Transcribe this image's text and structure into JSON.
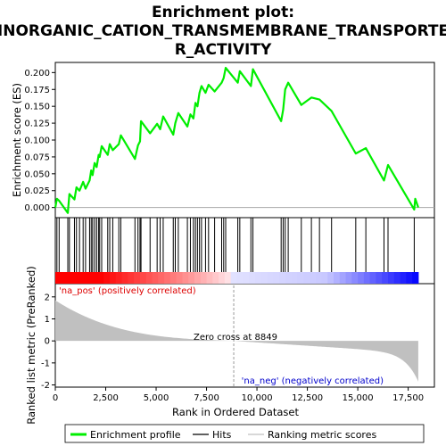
{
  "chart_data": {
    "type": "line",
    "title_line1": "Enrichment plot:",
    "title_line2": "INORGANIC_CATION_TRANSMEMBRANE_TRANSPORTE",
    "title_line3": "R_ACTIVITY",
    "xlabel": "Rank in Ordered Dataset",
    "ylabel_top": "Enrichment score (ES)",
    "ylabel_bottom": "Ranked list metric (PreRanked)",
    "xlim": [
      0,
      18800
    ],
    "es_ylim": [
      -0.015,
      0.215
    ],
    "metric_ylim": [
      -2.1,
      2.6
    ],
    "x_ticks": [
      0,
      2500,
      5000,
      7500,
      10000,
      12500,
      15000,
      17500
    ],
    "x_tick_labels": [
      "0",
      "2,500",
      "5,000",
      "7,500",
      "10,000",
      "12,500",
      "15,000",
      "17,500"
    ],
    "es_ticks": [
      0.0,
      0.025,
      0.05,
      0.075,
      0.1,
      0.125,
      0.15,
      0.175,
      0.2
    ],
    "es_tick_labels": [
      "0.000",
      "0.025",
      "0.050",
      "0.075",
      "0.100",
      "0.125",
      "0.150",
      "0.175",
      "0.200"
    ],
    "metric_ticks": [
      -2,
      -1,
      0,
      1,
      2
    ],
    "metric_tick_labels": [
      "-2",
      "-1",
      "0",
      "1",
      "2"
    ],
    "zero_cross_rank": 8849,
    "zero_cross_label": "Zero cross at 8849",
    "pos_label": "'na_pos' (positively correlated)",
    "neg_label": "'na_neg' (negatively correlated)",
    "n_genes": 18000,
    "hits": [
      80,
      190,
      620,
      700,
      950,
      1050,
      1200,
      1380,
      1500,
      1700,
      1780,
      1850,
      1950,
      2050,
      2150,
      2200,
      2300,
      2600,
      2700,
      2850,
      3150,
      3250,
      3950,
      4100,
      4200,
      4250,
      4700,
      5050,
      5200,
      5350,
      5850,
      5950,
      6100,
      6550,
      6700,
      6850,
      6950,
      7050,
      7150,
      7250,
      7450,
      7600,
      7900,
      8250,
      8350,
      8450,
      9050,
      9150,
      9700,
      9800,
      11200,
      11300,
      11400,
      11550,
      12200,
      12700,
      13100,
      13700,
      14900,
      15400,
      16300,
      16500,
      17800
    ],
    "es_points": [
      [
        0,
        0.0
      ],
      [
        80,
        0.013
      ],
      [
        190,
        0.01
      ],
      [
        620,
        -0.008
      ],
      [
        700,
        0.02
      ],
      [
        950,
        0.012
      ],
      [
        1050,
        0.03
      ],
      [
        1200,
        0.025
      ],
      [
        1380,
        0.038
      ],
      [
        1500,
        0.028
      ],
      [
        1700,
        0.04
      ],
      [
        1780,
        0.055
      ],
      [
        1850,
        0.048
      ],
      [
        1950,
        0.066
      ],
      [
        2050,
        0.06
      ],
      [
        2150,
        0.078
      ],
      [
        2200,
        0.075
      ],
      [
        2300,
        0.091
      ],
      [
        2600,
        0.078
      ],
      [
        2700,
        0.094
      ],
      [
        2850,
        0.085
      ],
      [
        3150,
        0.094
      ],
      [
        3250,
        0.107
      ],
      [
        3950,
        0.072
      ],
      [
        4100,
        0.092
      ],
      [
        4200,
        0.098
      ],
      [
        4250,
        0.128
      ],
      [
        4700,
        0.11
      ],
      [
        5050,
        0.124
      ],
      [
        5200,
        0.116
      ],
      [
        5350,
        0.135
      ],
      [
        5850,
        0.108
      ],
      [
        5950,
        0.125
      ],
      [
        6100,
        0.14
      ],
      [
        6550,
        0.12
      ],
      [
        6700,
        0.138
      ],
      [
        6850,
        0.132
      ],
      [
        6950,
        0.155
      ],
      [
        7050,
        0.15
      ],
      [
        7150,
        0.17
      ],
      [
        7250,
        0.18
      ],
      [
        7450,
        0.17
      ],
      [
        7600,
        0.182
      ],
      [
        7900,
        0.172
      ],
      [
        8250,
        0.185
      ],
      [
        8350,
        0.192
      ],
      [
        8450,
        0.207
      ],
      [
        9050,
        0.185
      ],
      [
        9150,
        0.202
      ],
      [
        9700,
        0.18
      ],
      [
        9800,
        0.205
      ],
      [
        11200,
        0.128
      ],
      [
        11300,
        0.145
      ],
      [
        11400,
        0.175
      ],
      [
        11550,
        0.185
      ],
      [
        12200,
        0.152
      ],
      [
        12700,
        0.163
      ],
      [
        13100,
        0.16
      ],
      [
        13700,
        0.143
      ],
      [
        14900,
        0.08
      ],
      [
        15400,
        0.088
      ],
      [
        16300,
        0.04
      ],
      [
        16500,
        0.063
      ],
      [
        17800,
        -0.003
      ],
      [
        17850,
        0.013
      ],
      [
        18000,
        0.0
      ]
    ],
    "legend": [
      "Enrichment profile",
      "Hits",
      "Ranking metric scores"
    ],
    "colors": {
      "es_line": "#00ee00",
      "hits": "#000000",
      "metric_fill": "#c0c0c0",
      "zero_line": "#a8a8a8",
      "pos_text": "#dd0000",
      "neg_text": "#0000cc",
      "band_pos_strong": "#ff0000",
      "band_neg_strong": "#0000ff"
    }
  }
}
